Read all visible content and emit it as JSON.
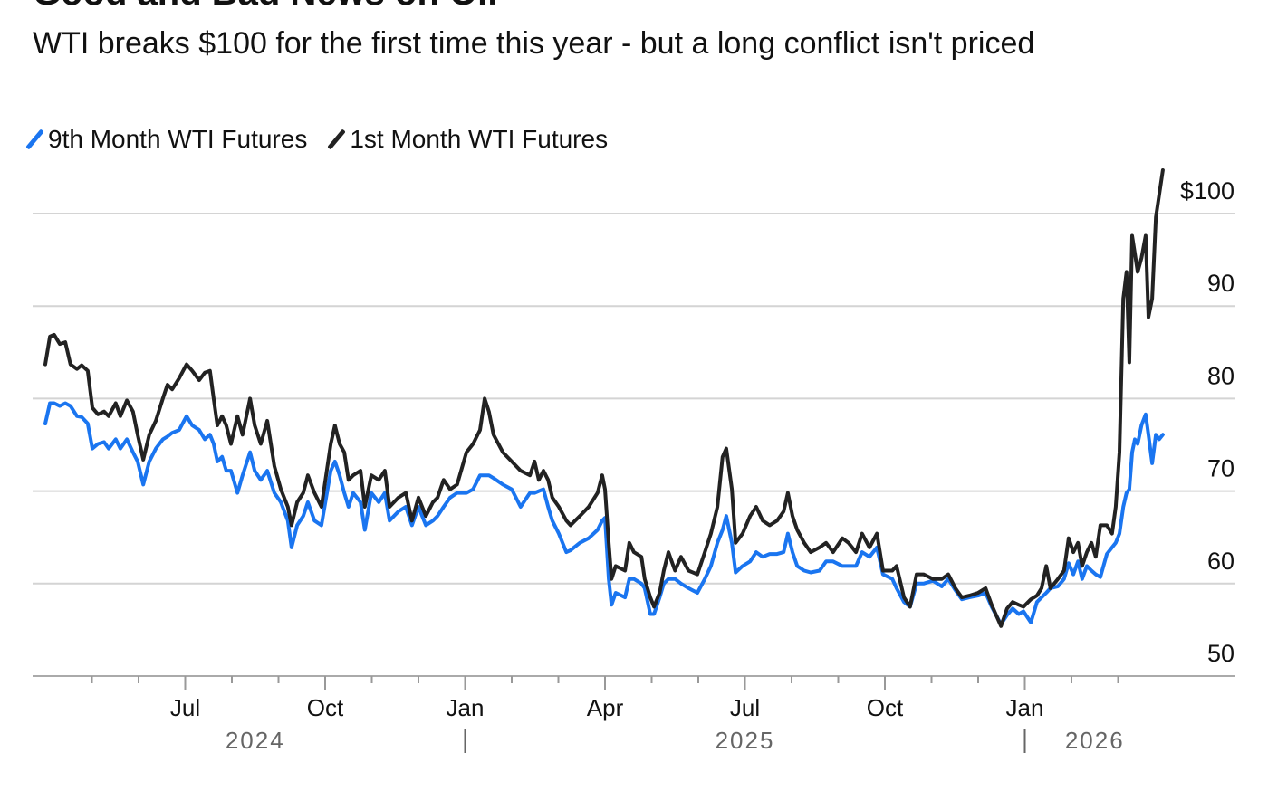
{
  "chart_data": {
    "type": "line",
    "title": "Good and Bad News on Oil",
    "subtitle": "WTI breaks $100 for the first time this year - but a long conflict isn't priced",
    "xlabel": "",
    "ylabel": "",
    "x_unit": "months since Apr 1, 2024",
    "ylim": [
      50,
      105
    ],
    "yticks": [
      50,
      60,
      70,
      80,
      90,
      100
    ],
    "ytick_labels": [
      "50",
      "60",
      "70",
      "80",
      "90",
      "$100"
    ],
    "xticks": [
      {
        "m": 3,
        "label": "Jul"
      },
      {
        "m": 6,
        "label": "Oct"
      },
      {
        "m": 9,
        "label": "Jan"
      },
      {
        "m": 12,
        "label": "Apr"
      },
      {
        "m": 15,
        "label": "Jul"
      },
      {
        "m": 18,
        "label": "Oct"
      },
      {
        "m": 21,
        "label": "Jan"
      }
    ],
    "years": [
      {
        "m": 4.5,
        "label": "2024"
      },
      {
        "m": 15,
        "label": "2025"
      },
      {
        "m": 22.5,
        "label": "2026"
      }
    ],
    "year_separators": [
      9,
      21
    ],
    "grid": true,
    "legend_position": "top-left",
    "x": [
      0,
      0.1,
      0.19,
      0.31,
      0.43,
      0.54,
      0.68,
      0.78,
      0.91,
      1.01,
      1.13,
      1.26,
      1.36,
      1.51,
      1.61,
      1.75,
      1.88,
      1.98,
      2.1,
      2.23,
      2.37,
      2.52,
      2.62,
      2.72,
      2.87,
      3.03,
      3.15,
      3.3,
      3.42,
      3.53,
      3.61,
      3.69,
      3.79,
      3.88,
      3.98,
      4.12,
      4.23,
      4.39,
      4.49,
      4.62,
      4.76,
      4.91,
      5.05,
      5.2,
      5.28,
      5.4,
      5.53,
      5.63,
      5.77,
      5.92,
      6.12,
      6.21,
      6.31,
      6.41,
      6.5,
      6.6,
      6.76,
      6.85,
      6.99,
      7.15,
      7.28,
      7.38,
      7.57,
      7.73,
      7.86,
      8.0,
      8.16,
      8.31,
      8.41,
      8.54,
      8.68,
      8.83,
      9.03,
      9.17,
      9.32,
      9.42,
      9.51,
      9.61,
      9.81,
      10.0,
      10.19,
      10.39,
      10.49,
      10.58,
      10.68,
      10.78,
      10.87,
      11.01,
      11.17,
      11.26,
      11.46,
      11.65,
      11.84,
      11.94,
      12.0,
      12.08,
      12.14,
      12.23,
      12.43,
      12.52,
      12.62,
      12.78,
      12.85,
      12.97,
      13.05,
      13.17,
      13.26,
      13.36,
      13.5,
      13.63,
      13.79,
      13.98,
      14.14,
      14.27,
      14.41,
      14.52,
      14.6,
      14.72,
      14.8,
      14.95,
      15.11,
      15.24,
      15.38,
      15.53,
      15.69,
      15.83,
      15.92,
      16.02,
      16.12,
      16.27,
      16.41,
      16.6,
      16.74,
      16.89,
      17.09,
      17.22,
      17.38,
      17.51,
      17.67,
      17.83,
      17.96,
      18.16,
      18.25,
      18.41,
      18.54,
      18.68,
      18.83,
      19.03,
      19.22,
      19.36,
      19.51,
      19.65,
      19.81,
      20.0,
      20.16,
      20.29,
      20.49,
      20.62,
      20.74,
      20.87,
      20.97,
      21.13,
      21.26,
      21.36,
      21.46,
      21.55,
      21.71,
      21.84,
      21.94,
      22.04,
      22.14,
      22.23,
      22.33,
      22.43,
      22.52,
      22.62,
      22.76,
      22.87,
      22.95,
      23.03,
      23.11,
      23.18,
      23.24,
      23.3,
      23.36,
      23.42,
      23.5,
      23.59,
      23.65,
      23.73,
      23.81,
      23.88,
      23.96
    ],
    "series": [
      {
        "name": "9th Month WTI Futures",
        "color": "#1a75f0",
        "values": [
          77.3,
          79.5,
          79.5,
          79.2,
          79.5,
          79.2,
          78.1,
          78.0,
          77.3,
          74.6,
          75.1,
          75.3,
          74.6,
          75.6,
          74.6,
          75.6,
          74.2,
          73.2,
          70.7,
          73.2,
          74.6,
          75.6,
          75.9,
          76.3,
          76.6,
          78.1,
          77.1,
          76.6,
          75.6,
          76.1,
          75.1,
          73.2,
          73.7,
          72.2,
          72.2,
          69.8,
          71.7,
          74.2,
          72.2,
          71.2,
          72.2,
          69.8,
          68.8,
          66.8,
          63.9,
          66.3,
          67.3,
          68.8,
          66.8,
          66.3,
          72.2,
          73.2,
          71.7,
          69.8,
          68.3,
          69.8,
          68.8,
          65.8,
          69.8,
          68.8,
          69.8,
          66.8,
          67.8,
          68.3,
          66.3,
          68.3,
          66.3,
          66.8,
          67.3,
          68.3,
          69.3,
          69.8,
          69.8,
          70.2,
          71.7,
          71.7,
          71.7,
          71.4,
          70.7,
          70.2,
          68.3,
          69.8,
          69.8,
          70.0,
          70.2,
          68.3,
          66.8,
          65.4,
          63.4,
          63.6,
          64.4,
          64.9,
          65.8,
          66.8,
          67.1,
          60.5,
          57.7,
          59.0,
          58.5,
          60.5,
          60.5,
          60.0,
          59.5,
          56.7,
          56.7,
          58.5,
          60.0,
          60.5,
          60.5,
          60.0,
          59.5,
          59.0,
          60.5,
          61.9,
          64.4,
          65.8,
          67.3,
          64.4,
          61.2,
          61.9,
          62.4,
          63.4,
          62.9,
          63.2,
          63.2,
          63.4,
          65.4,
          63.4,
          61.9,
          61.4,
          61.2,
          61.4,
          62.4,
          62.4,
          61.9,
          61.9,
          61.9,
          63.4,
          62.9,
          63.9,
          61.0,
          60.5,
          59.5,
          58.0,
          57.5,
          60.0,
          60.0,
          60.3,
          59.7,
          60.5,
          59.3,
          58.3,
          58.5,
          58.7,
          59.0,
          57.5,
          55.6,
          56.6,
          57.3,
          56.7,
          57.0,
          55.8,
          58.0,
          58.5,
          59.0,
          59.5,
          59.7,
          60.5,
          62.2,
          61.0,
          62.4,
          60.5,
          61.9,
          61.4,
          61.0,
          60.7,
          63.2,
          63.9,
          64.4,
          65.4,
          68.3,
          69.8,
          70.2,
          74.2,
          75.6,
          75.1,
          77.1,
          78.3,
          76.1,
          73.0,
          76.1,
          75.6,
          76.1
        ]
      },
      {
        "name": "1st Month WTI Futures",
        "color": "#222222",
        "values": [
          83.7,
          86.7,
          86.9,
          85.9,
          86.1,
          83.7,
          83.2,
          83.6,
          83.0,
          79.0,
          78.3,
          78.6,
          78.1,
          79.5,
          78.1,
          79.8,
          78.6,
          76.1,
          73.4,
          76.1,
          77.6,
          80.0,
          81.5,
          81.0,
          82.2,
          83.7,
          83.0,
          82.0,
          82.8,
          83.0,
          80.0,
          77.1,
          78.1,
          77.1,
          75.1,
          78.1,
          76.1,
          80.0,
          77.1,
          75.1,
          77.6,
          72.7,
          70.2,
          68.3,
          66.3,
          68.8,
          69.8,
          71.7,
          69.8,
          68.3,
          75.1,
          77.1,
          75.1,
          74.2,
          71.2,
          71.7,
          72.2,
          68.3,
          71.7,
          71.2,
          72.2,
          68.3,
          69.3,
          69.8,
          66.8,
          69.3,
          67.3,
          68.8,
          69.3,
          71.2,
          70.2,
          70.7,
          74.2,
          75.1,
          76.6,
          80.0,
          78.6,
          76.1,
          74.2,
          73.2,
          72.2,
          71.7,
          73.2,
          71.2,
          72.2,
          71.2,
          69.3,
          68.3,
          66.8,
          66.3,
          67.3,
          68.3,
          69.8,
          71.7,
          70.2,
          64.4,
          60.5,
          61.9,
          61.4,
          64.4,
          63.4,
          62.9,
          60.5,
          58.5,
          57.5,
          59.0,
          61.4,
          63.4,
          61.4,
          62.9,
          61.4,
          61.0,
          63.4,
          65.4,
          68.3,
          73.7,
          74.6,
          70.2,
          64.4,
          65.4,
          67.3,
          68.3,
          66.8,
          66.3,
          66.8,
          67.8,
          69.8,
          67.3,
          65.8,
          64.4,
          63.4,
          63.9,
          64.4,
          63.4,
          64.9,
          64.4,
          63.4,
          65.4,
          63.9,
          65.4,
          61.4,
          61.4,
          61.9,
          58.5,
          57.5,
          61.0,
          61.0,
          60.5,
          60.5,
          61.0,
          59.5,
          58.5,
          58.7,
          59.0,
          59.5,
          57.7,
          55.4,
          57.3,
          58.0,
          57.7,
          57.5,
          58.3,
          58.7,
          59.5,
          61.9,
          59.5,
          60.5,
          61.4,
          64.9,
          63.4,
          64.4,
          61.9,
          63.4,
          64.4,
          62.9,
          66.3,
          66.3,
          65.4,
          68.3,
          74.2,
          90.8,
          93.7,
          83.9,
          97.6,
          95.7,
          93.7,
          95.2,
          97.6,
          88.8,
          90.8,
          99.6,
          102.0,
          104.7
        ]
      }
    ]
  }
}
